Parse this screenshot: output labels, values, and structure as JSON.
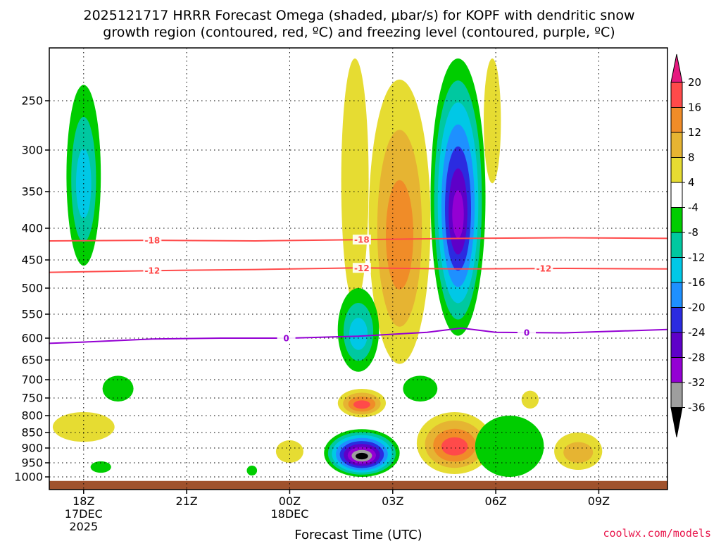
{
  "title": {
    "line1": "2025121717 HRRR Forecast Omega (shaded, μbar/s) for KOPF with dendritic snow",
    "line2": "growth region (contoured, red, ºC) and freezing level (contoured, purple, ºC)"
  },
  "credit": "coolwx.com/models",
  "colors": {
    "background": "#ffffff",
    "dgz_contour": "#ff4a4a",
    "freezing_contour": "#9400d3",
    "terrain": "#a0522d",
    "grid": "#000000"
  },
  "chart_data": {
    "type": "heatmap",
    "title": "2025121717 HRRR Forecast Omega (shaded, μbar/s) for KOPF",
    "xlabel": "Forecast Time (UTC)",
    "ylabel": "",
    "x_unit": "hours since 2025-12-17 17Z",
    "xlim": [
      0,
      18
    ],
    "x_ticks": [
      {
        "x": 1,
        "labels": [
          "18Z",
          "17DEC",
          "2025"
        ]
      },
      {
        "x": 4,
        "labels": [
          "21Z"
        ]
      },
      {
        "x": 7,
        "labels": [
          "00Z",
          "18DEC"
        ]
      },
      {
        "x": 10,
        "labels": [
          "03Z"
        ]
      },
      {
        "x": 13,
        "labels": [
          "06Z"
        ]
      },
      {
        "x": 16,
        "labels": [
          "09Z"
        ]
      }
    ],
    "y_unit": "hPa",
    "ylim": [
      1025,
      200
    ],
    "y_ticks": [
      250,
      300,
      350,
      400,
      450,
      500,
      550,
      600,
      650,
      700,
      750,
      800,
      850,
      900,
      950,
      1000
    ],
    "colorbar": {
      "unit": "μbar/s",
      "bins": [
        {
          "label": null,
          "color": "#000000"
        },
        {
          "label": "-36",
          "color": "#9e9e9e"
        },
        {
          "label": "-32",
          "color": "#9400d3"
        },
        {
          "label": "-28",
          "color": "#5e00c8"
        },
        {
          "label": "-24",
          "color": "#2b2be0"
        },
        {
          "label": "-20",
          "color": "#1e90ff"
        },
        {
          "label": "-16",
          "color": "#00c8e6"
        },
        {
          "label": "-12",
          "color": "#00c8a0"
        },
        {
          "label": "-8",
          "color": "#00cd00"
        },
        {
          "label": "-4",
          "color": "#ffffff"
        },
        {
          "label": "4",
          "color": "#e6dc32"
        },
        {
          "label": "8",
          "color": "#e6b432"
        },
        {
          "label": "12",
          "color": "#f08c28"
        },
        {
          "label": "16",
          "color": "#ff4a4a"
        },
        {
          "label": "20",
          "color": "#e6197f"
        }
      ]
    },
    "omega_features": [
      {
        "name": "green plume 18Z",
        "x": 1.0,
        "p_top": 235,
        "p_bottom": 460,
        "half_width": 0.5,
        "levels": [
          -4,
          -8,
          -12
        ]
      },
      {
        "name": "yellow column 02Z",
        "x": 8.9,
        "p_top": 210,
        "p_bottom": 530,
        "half_width": 0.4,
        "levels": [
          4
        ]
      },
      {
        "name": "yellow column 03Z",
        "x": 10.2,
        "p_top": 230,
        "p_bottom": 660,
        "half_width": 0.9,
        "levels": [
          4,
          8,
          12
        ]
      },
      {
        "name": "green plume 02Z",
        "x": 9.0,
        "p_top": 500,
        "p_bottom": 680,
        "half_width": 0.6,
        "levels": [
          -4,
          -8,
          -12
        ]
      },
      {
        "name": "deep ascent 05Z",
        "x": 11.9,
        "p_top": 210,
        "p_bottom": 595,
        "half_width": 0.8,
        "levels": [
          -4,
          -8,
          -12,
          -16,
          -20,
          -24,
          -28
        ]
      },
      {
        "name": "yellow 06Z",
        "x": 12.9,
        "p_top": 210,
        "p_bottom": 340,
        "half_width": 0.25,
        "levels": [
          4
        ]
      },
      {
        "name": "green 19Z",
        "x": 2.0,
        "p_top": 690,
        "p_bottom": 760,
        "half_width": 0.45,
        "levels": [
          -4
        ]
      },
      {
        "name": "yellow 18Z low",
        "x": 1.0,
        "p_top": 790,
        "p_bottom": 880,
        "half_width": 0.9,
        "levels": [
          4
        ]
      },
      {
        "name": "green 19Z low",
        "x": 1.5,
        "p_top": 945,
        "p_bottom": 985,
        "half_width": 0.3,
        "levels": [
          -4
        ]
      },
      {
        "name": "green 23Z",
        "x": 5.9,
        "p_top": 960,
        "p_bottom": 995,
        "half_width": 0.15,
        "levels": [
          -4
        ]
      },
      {
        "name": "yellow 00Z",
        "x": 7.0,
        "p_top": 875,
        "p_bottom": 950,
        "half_width": 0.4,
        "levels": [
          4
        ]
      },
      {
        "name": "cell 02Z mid",
        "x": 9.1,
        "p_top": 725,
        "p_bottom": 805,
        "half_width": 0.7,
        "levels": [
          4,
          8,
          12,
          16
        ]
      },
      {
        "name": "strong ascent 02Z",
        "x": 9.1,
        "p_top": 840,
        "p_bottom": 1000,
        "half_width": 1.1,
        "levels": [
          -4,
          -8,
          -12,
          -16,
          -20,
          -24,
          -28,
          -32,
          -36
        ]
      },
      {
        "name": "green 04Z",
        "x": 10.8,
        "p_top": 690,
        "p_bottom": 760,
        "half_width": 0.5,
        "levels": [
          -4
        ]
      },
      {
        "name": "subsidence 05Z",
        "x": 11.8,
        "p_top": 790,
        "p_bottom": 990,
        "half_width": 1.1,
        "levels": [
          4,
          8,
          12,
          16
        ]
      },
      {
        "name": "green 06-07Z",
        "x": 13.4,
        "p_top": 800,
        "p_bottom": 1000,
        "half_width": 1.0,
        "levels": [
          -4
        ]
      },
      {
        "name": "yellow 07Z",
        "x": 14.0,
        "p_top": 730,
        "p_bottom": 780,
        "half_width": 0.25,
        "levels": [
          4
        ]
      },
      {
        "name": "yellow 08Z",
        "x": 15.4,
        "p_top": 850,
        "p_bottom": 975,
        "half_width": 0.7,
        "levels": [
          4,
          8
        ]
      }
    ],
    "contours": [
      {
        "name": "-18",
        "color": "#ff4a4a",
        "label": "-18",
        "label_x": [
          3.0,
          9.1
        ],
        "x": [
          0,
          3,
          6,
          9,
          12,
          15,
          18
        ],
        "p": [
          420,
          419,
          420,
          418,
          416,
          415,
          416
        ]
      },
      {
        "name": "-12",
        "color": "#ff4a4a",
        "label": "-12",
        "label_x": [
          3.0,
          9.1,
          14.4
        ],
        "x": [
          0,
          3,
          6,
          9,
          12,
          15,
          18
        ],
        "p": [
          472,
          469,
          467,
          464,
          466,
          465,
          466
        ]
      },
      {
        "name": "0",
        "color": "#9400d3",
        "label": "0",
        "label_x": [
          6.9,
          13.9
        ],
        "x": [
          0,
          1,
          3,
          5,
          7,
          9,
          11,
          12,
          13,
          15,
          18
        ],
        "p": [
          612,
          609,
          602,
          600,
          600,
          596,
          588,
          579,
          588,
          589,
          582
        ]
      }
    ]
  }
}
